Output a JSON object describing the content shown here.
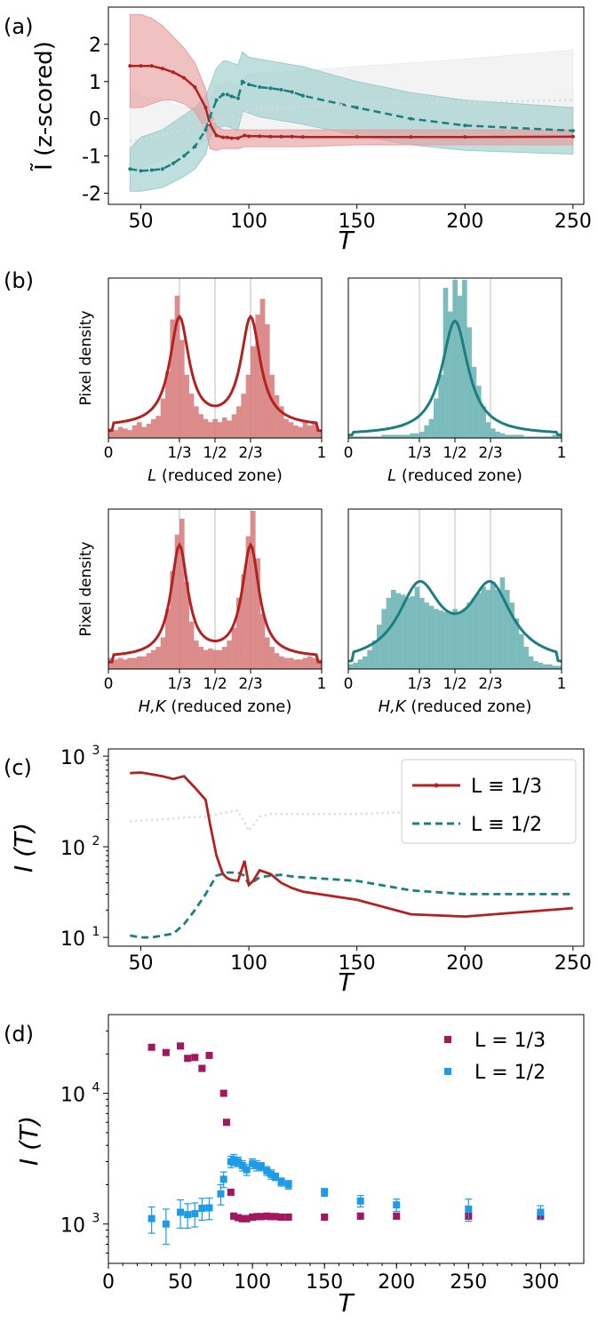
{
  "chart_data": [
    {
      "panel_label": "(a)",
      "type": "line",
      "ylabel": "Ĩ (z-scored)",
      "xlabel": "T",
      "xlim": [
        35,
        255
      ],
      "ylim": [
        -2.3,
        3.0
      ],
      "xticks": [
        50,
        100,
        150,
        200,
        250
      ],
      "yticks": [
        -2,
        -1,
        0,
        1,
        2
      ],
      "series": [
        {
          "color": "#b22222",
          "style": "solid",
          "band_color": "#e6a0a0",
          "x": [
            45,
            50,
            55,
            60,
            65,
            70,
            75,
            80,
            82,
            85,
            88,
            90,
            92,
            95,
            98,
            100,
            105,
            110,
            115,
            120,
            125,
            150,
            175,
            200,
            250
          ],
          "y": [
            1.42,
            1.42,
            1.42,
            1.35,
            1.25,
            1.1,
            0.85,
            0.3,
            -0.15,
            -0.45,
            -0.5,
            -0.5,
            -0.52,
            -0.52,
            -0.45,
            -0.47,
            -0.47,
            -0.48,
            -0.48,
            -0.48,
            -0.49,
            -0.49,
            -0.49,
            -0.49,
            -0.48
          ],
          "upper": [
            2.8,
            2.8,
            2.7,
            2.5,
            2.2,
            1.9,
            1.5,
            0.8,
            0.2,
            -0.2,
            -0.3,
            -0.3,
            -0.3,
            -0.3,
            -0.3,
            -0.3,
            -0.3,
            -0.3,
            -0.3,
            -0.3,
            -0.3,
            -0.3,
            -0.3,
            -0.3,
            -0.3
          ],
          "lower": [
            0.3,
            0.3,
            0.4,
            0.5,
            0.5,
            0.4,
            0.2,
            -0.3,
            -0.8,
            -0.85,
            -0.8,
            -0.8,
            -0.8,
            -0.8,
            -0.75,
            -0.75,
            -0.75,
            -0.75,
            -0.75,
            -0.75,
            -0.75,
            -0.7,
            -0.7,
            -0.7,
            -0.7
          ]
        },
        {
          "color": "#1b7f7f",
          "style": "dashed",
          "band_color": "#9ccccc",
          "x": [
            45,
            50,
            55,
            60,
            65,
            70,
            75,
            80,
            82,
            85,
            88,
            90,
            92,
            95,
            97,
            100,
            105,
            110,
            115,
            120,
            125,
            150,
            175,
            200,
            250
          ],
          "y": [
            -1.35,
            -1.4,
            -1.38,
            -1.35,
            -1.2,
            -1.0,
            -0.75,
            -0.3,
            0.05,
            0.5,
            0.65,
            0.65,
            0.6,
            0.55,
            1.0,
            0.92,
            0.85,
            0.82,
            0.78,
            0.72,
            0.62,
            0.3,
            0.0,
            -0.18,
            -0.32
          ],
          "upper": [
            -0.8,
            -0.5,
            -0.4,
            -0.3,
            -0.1,
            0.1,
            0.3,
            0.6,
            0.9,
            1.35,
            1.55,
            1.55,
            1.5,
            1.45,
            1.8,
            1.65,
            1.6,
            1.55,
            1.5,
            1.45,
            1.4,
            1.0,
            0.7,
            0.5,
            0.3
          ],
          "lower": [
            -1.95,
            -1.95,
            -1.9,
            -1.85,
            -1.7,
            -1.55,
            -1.35,
            -0.95,
            -0.5,
            -0.25,
            -0.2,
            -0.2,
            -0.25,
            -0.3,
            0.2,
            0.15,
            0.05,
            0.0,
            -0.05,
            -0.1,
            -0.15,
            -0.45,
            -0.7,
            -0.85,
            -0.95
          ]
        },
        {
          "color": "#d9d9d9",
          "style": "dotted",
          "band_color": "#ececec",
          "x": [
            45,
            50,
            60,
            70,
            80,
            85,
            90,
            95,
            100,
            150,
            200,
            250
          ],
          "y": [
            -0.6,
            -0.55,
            -0.45,
            -0.3,
            -0.15,
            -0.05,
            0.1,
            0.0,
            0.25,
            0.4,
            0.45,
            0.5
          ],
          "upper": [
            0.8,
            0.6,
            0.5,
            0.3,
            0.3,
            0.9,
            1.0,
            0.9,
            1.2,
            1.4,
            1.6,
            1.85
          ],
          "lower": [
            -1.4,
            -1.3,
            -1.1,
            -0.9,
            -0.6,
            -0.5,
            -0.4,
            -0.5,
            -0.4,
            -0.5,
            -0.6,
            -0.7
          ]
        }
      ]
    },
    {
      "panel_label": "(b)",
      "type": "histogram",
      "subplots": [
        {
          "ylabel": "Pixel density",
          "xlabel": "L (reduced zone)",
          "color": "#b22222",
          "bar_color": "#d98080",
          "peaks": [
            0.333,
            0.667
          ],
          "width": 0.055,
          "baseline": 0.07,
          "amp": 0.68,
          "bars": [
            0.06,
            0.05,
            0.07,
            0.06,
            0.05,
            0.08,
            0.1,
            0.07,
            0.09,
            0.12,
            0.14,
            0.25,
            0.42,
            0.75,
            0.9,
            0.62,
            0.4,
            0.28,
            0.2,
            0.15,
            0.12,
            0.1,
            0.12,
            0.1,
            0.13,
            0.11,
            0.15,
            0.2,
            0.28,
            0.4,
            0.58,
            0.78,
            0.88,
            0.72,
            0.4,
            0.27,
            0.2,
            0.12,
            0.1,
            0.08,
            0.07,
            0.1,
            0.08,
            0.09,
            0.05
          ]
        },
        {
          "ylabel": "",
          "xlabel": "L (reduced zone)",
          "color": "#1b7f7f",
          "bar_color": "#6fb5b5",
          "peaks": [
            0.5
          ],
          "width": 0.075,
          "baseline": 0.02,
          "amp": 0.72,
          "bars": [
            0.01,
            0.01,
            0.01,
            0.01,
            0.01,
            0.01,
            0.01,
            0.02,
            0.02,
            0.02,
            0.02,
            0.02,
            0.02,
            0.03,
            0.03,
            0.04,
            0.08,
            0.12,
            0.25,
            0.4,
            0.95,
            0.8,
            1.0,
            0.9,
            1.08,
            0.7,
            0.45,
            0.33,
            0.2,
            0.1,
            0.06,
            0.04,
            0.03,
            0.02,
            0.02,
            0.02,
            0.02,
            0.01,
            0.01,
            0.01,
            0.01,
            0.01,
            0.01,
            0.02,
            0.03
          ]
        },
        {
          "ylabel": "Pixel density",
          "xlabel": "H,K (reduced zone)",
          "color": "#b22222",
          "bar_color": "#d98080",
          "peaks": [
            0.333,
            0.667
          ],
          "width": 0.048,
          "baseline": 0.07,
          "amp": 0.7,
          "bars": [
            0.07,
            0.06,
            0.07,
            0.06,
            0.07,
            0.07,
            0.08,
            0.08,
            0.1,
            0.12,
            0.14,
            0.2,
            0.38,
            0.62,
            0.85,
            0.95,
            0.55,
            0.3,
            0.18,
            0.14,
            0.12,
            0.13,
            0.12,
            0.12,
            0.14,
            0.18,
            0.26,
            0.45,
            0.6,
            0.84,
            1.0,
            0.7,
            0.35,
            0.2,
            0.14,
            0.1,
            0.08,
            0.07,
            0.07,
            0.06,
            0.06,
            0.07,
            0.08,
            0.07,
            0.06
          ]
        },
        {
          "ylabel": "",
          "xlabel": "H,K (reduced zone)",
          "color": "#1b7f7f",
          "bar_color": "#6fb5b5",
          "peaks": [
            0.333,
            0.667
          ],
          "width": 0.12,
          "baseline": 0.03,
          "amp": 0.47,
          "bars": [
            0.03,
            0.04,
            0.06,
            0.08,
            0.12,
            0.18,
            0.28,
            0.38,
            0.45,
            0.5,
            0.48,
            0.47,
            0.45,
            0.46,
            0.52,
            0.45,
            0.42,
            0.4,
            0.38,
            0.37,
            0.36,
            0.35,
            0.38,
            0.36,
            0.38,
            0.42,
            0.45,
            0.48,
            0.52,
            0.5,
            0.55,
            0.5,
            0.58,
            0.5,
            0.42,
            0.32,
            0.22,
            0.14,
            0.08,
            0.05,
            0.04,
            0.03,
            0.03,
            0.02,
            0.02
          ]
        }
      ],
      "xticks": [
        "0",
        "1/3",
        "1/2",
        "2/3",
        "1"
      ]
    },
    {
      "panel_label": "(c)",
      "type": "line",
      "ylabel": "I (T)",
      "xlabel": "T",
      "yscale": "log",
      "xlim": [
        35,
        255
      ],
      "ylim": [
        8,
        1200
      ],
      "xticks": [
        50,
        100,
        150,
        200,
        250
      ],
      "yticks": [
        {
          "v": 10,
          "base": "10",
          "exp": "1"
        },
        {
          "v": 100,
          "base": "10",
          "exp": "2"
        },
        {
          "v": 1000,
          "base": "10",
          "exp": "3"
        }
      ],
      "legend": {
        "position": "top-right",
        "entries": [
          "L ≡  1/3",
          "L ≡  1/2"
        ]
      },
      "series": [
        {
          "name": "L ≡  1/3",
          "color": "#b22222",
          "style": "solid",
          "x": [
            45,
            50,
            55,
            60,
            65,
            70,
            75,
            80,
            82,
            85,
            88,
            90,
            92,
            95,
            98,
            100,
            102,
            105,
            110,
            115,
            120,
            125,
            150,
            175,
            200,
            250
          ],
          "y": [
            650,
            660,
            630,
            600,
            560,
            600,
            450,
            330,
            180,
            80,
            50,
            45,
            43,
            42,
            70,
            38,
            42,
            55,
            50,
            40,
            35,
            32,
            26,
            18,
            17,
            21
          ]
        },
        {
          "name": "L ≡  1/2",
          "color": "#1b7f7f",
          "style": "dashed",
          "x": [
            45,
            50,
            55,
            60,
            65,
            70,
            75,
            80,
            85,
            90,
            95,
            98,
            100,
            105,
            110,
            115,
            120,
            125,
            150,
            175,
            200,
            250
          ],
          "y": [
            10.5,
            10,
            10,
            10.5,
            11,
            14,
            20,
            30,
            48,
            52,
            52,
            48,
            38,
            46,
            48,
            49,
            47,
            46,
            42,
            33,
            30,
            30
          ]
        },
        {
          "name": "",
          "color": "#d9d9d9",
          "style": "dotted",
          "x": [
            45,
            50,
            60,
            70,
            80,
            90,
            95,
            100,
            105,
            110,
            150,
            200,
            250
          ],
          "y": [
            190,
            195,
            200,
            210,
            215,
            240,
            250,
            150,
            215,
            230,
            230,
            255,
            260
          ]
        }
      ]
    },
    {
      "panel_label": "(d)",
      "type": "scatter",
      "ylabel": "I (T)",
      "xlabel": "T",
      "yscale": "log",
      "xlim": [
        0,
        330
      ],
      "ylim": [
        500,
        40000
      ],
      "xticks": [
        0,
        50,
        100,
        150,
        200,
        250,
        300
      ],
      "yticks": [
        {
          "v": 1000,
          "base": "10",
          "exp": "3"
        },
        {
          "v": 10000,
          "base": "10",
          "exp": "4"
        }
      ],
      "legend": {
        "position": "top-right",
        "entries": [
          "L = 1/3",
          "L = 1/2"
        ]
      },
      "series": [
        {
          "name": "L = 1/3",
          "color": "#a3175f",
          "x": [
            30,
            40,
            50,
            55,
            60,
            65,
            70,
            80,
            82,
            85,
            87,
            90,
            93,
            96,
            100,
            103,
            106,
            110,
            113,
            116,
            120,
            125,
            150,
            175,
            200,
            250,
            300
          ],
          "y": [
            22500,
            20500,
            23000,
            18500,
            18800,
            15500,
            19500,
            10000,
            6000,
            1750,
            1150,
            1120,
            1100,
            1100,
            1130,
            1140,
            1140,
            1150,
            1140,
            1140,
            1130,
            1130,
            1130,
            1150,
            1150,
            1150,
            1150
          ],
          "err": [
            1000,
            1000,
            1000,
            800,
            800,
            800,
            800,
            500,
            300,
            80,
            60,
            60,
            60,
            60,
            60,
            60,
            60,
            60,
            60,
            60,
            60,
            60,
            60,
            60,
            60,
            60,
            60
          ]
        },
        {
          "name": "L = 1/2",
          "color": "#1e9be8",
          "x": [
            30,
            40,
            50,
            55,
            60,
            65,
            70,
            78,
            80,
            85,
            87,
            90,
            93,
            96,
            100,
            103,
            106,
            110,
            113,
            116,
            120,
            125,
            150,
            175,
            200,
            250,
            300
          ],
          "y": [
            1100,
            1000,
            1230,
            1180,
            1200,
            1320,
            1330,
            1700,
            2200,
            3000,
            3100,
            3000,
            2800,
            2600,
            2900,
            2800,
            2750,
            2550,
            2400,
            2300,
            2100,
            2000,
            1750,
            1500,
            1400,
            1300,
            1230
          ],
          "err": [
            250,
            300,
            300,
            250,
            250,
            250,
            250,
            300,
            300,
            300,
            300,
            250,
            250,
            250,
            250,
            250,
            200,
            200,
            200,
            150,
            150,
            150,
            120,
            150,
            150,
            250,
            150
          ]
        }
      ]
    }
  ]
}
